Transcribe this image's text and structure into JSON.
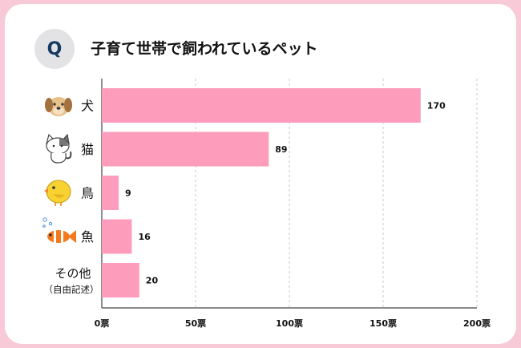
{
  "question": {
    "badge": "Q",
    "title": "子育て世帯で飼われているペット"
  },
  "chart_data": {
    "type": "bar",
    "orientation": "horizontal",
    "categories": [
      "犬",
      "猫",
      "鳥",
      "魚",
      "その他"
    ],
    "category_sublabels": [
      "",
      "",
      "",
      "",
      "（自由記述）"
    ],
    "category_icons": [
      "dog-icon",
      "cat-icon",
      "bird-icon",
      "fish-icon",
      ""
    ],
    "values": [
      170,
      89,
      9,
      16,
      20
    ],
    "value_labels": [
      "170",
      "89",
      "9",
      "16",
      "20"
    ],
    "xlim": [
      0,
      200
    ],
    "xticks": [
      0,
      50,
      100,
      150,
      200
    ],
    "xtick_labels": [
      "0票",
      "50票",
      "100票",
      "150票",
      "200票"
    ],
    "grid": "vertical-dashed",
    "colors": {
      "bar": "#fd9dbb",
      "background": "#f8c9d6",
      "badge_text": "#173a63",
      "badge_bg": "#e3e3e6"
    }
  }
}
